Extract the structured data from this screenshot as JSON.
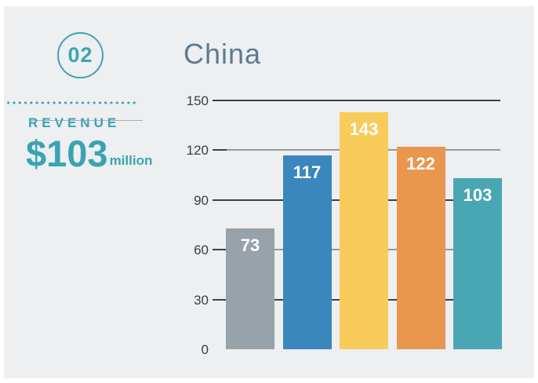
{
  "panel": {
    "badge_number": "02",
    "revenue_label": "REVENUE",
    "revenue_value": "$103",
    "revenue_unit": "million"
  },
  "chart": {
    "title": "China"
  },
  "chart_data": {
    "type": "bar",
    "title": "China",
    "categories": [
      "bar-1",
      "bar-2",
      "bar-3",
      "bar-4",
      "bar-5"
    ],
    "values": [
      73,
      117,
      143,
      122,
      103
    ],
    "bar_colors": [
      "#98a2aa",
      "#3987bc",
      "#f8cb5b",
      "#e9964f",
      "#48a7b2"
    ],
    "value_labels": [
      "73",
      "117",
      "143",
      "122",
      "103"
    ],
    "yticks": [
      150,
      120,
      90,
      60,
      30,
      0
    ],
    "gridline_colors": [
      "#3d4045",
      "#97989b",
      "#3d4045",
      "#97989b",
      "#3d4045",
      null
    ],
    "ylim": [
      0,
      150
    ],
    "grid": true,
    "legend": false,
    "xlabel": "",
    "ylabel": ""
  },
  "colors": {
    "background": "#ffffff",
    "panel": "#edeff1",
    "accent_teal": "#3aa3b1",
    "title_slate": "#5c7b94",
    "grid_dark": "#3d4045",
    "grid_light": "#97989b",
    "axis_label": "#3a3d42",
    "bar_value_text": "#ffffff"
  }
}
